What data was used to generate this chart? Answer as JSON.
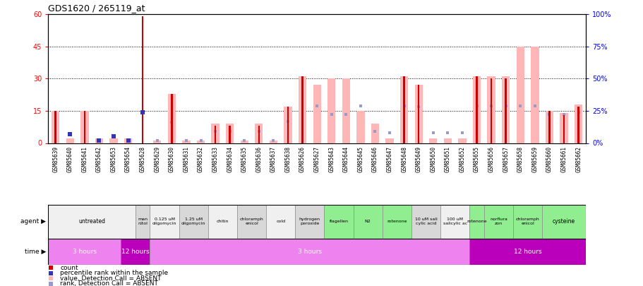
{
  "title": "GDS1620 / 265119_at",
  "samples": [
    "GSM85639",
    "GSM85640",
    "GSM85641",
    "GSM85642",
    "GSM85653",
    "GSM85654",
    "GSM85628",
    "GSM85629",
    "GSM85630",
    "GSM85631",
    "GSM85632",
    "GSM85633",
    "GSM85634",
    "GSM85635",
    "GSM85636",
    "GSM85637",
    "GSM85638",
    "GSM85626",
    "GSM85627",
    "GSM85643",
    "GSM85644",
    "GSM85645",
    "GSM85646",
    "GSM85647",
    "GSM85648",
    "GSM85649",
    "GSM85650",
    "GSM85651",
    "GSM85652",
    "GSM85655",
    "GSM85656",
    "GSM85657",
    "GSM85658",
    "GSM85659",
    "GSM85660",
    "GSM85661",
    "GSM85662"
  ],
  "red_bar": [
    15,
    0,
    15,
    0,
    0,
    0,
    59,
    0,
    23,
    0,
    0,
    8,
    8,
    0,
    8,
    0,
    17,
    31,
    0,
    0,
    0,
    0,
    0,
    0,
    31,
    27,
    0,
    0,
    0,
    31,
    30,
    30,
    0,
    0,
    15,
    13,
    17
  ],
  "blue_square_left": [
    0,
    7,
    0,
    2,
    5,
    2,
    24,
    0,
    0,
    0,
    0,
    0,
    0,
    0,
    0,
    0,
    0,
    0,
    0,
    0,
    0,
    0,
    0,
    0,
    0,
    0,
    0,
    0,
    0,
    0,
    0,
    0,
    0,
    0,
    0,
    0,
    0
  ],
  "pink_bar": [
    15,
    2,
    15,
    2,
    2,
    2,
    0,
    1,
    23,
    1,
    1,
    9,
    9,
    1,
    9,
    1,
    17,
    31,
    27,
    30,
    30,
    15,
    9,
    2,
    31,
    27,
    2,
    2,
    2,
    31,
    31,
    31,
    45,
    45,
    15,
    14,
    18
  ],
  "lightblue_square_right": [
    0,
    7,
    0,
    2,
    5,
    2,
    0,
    2,
    16,
    2,
    2,
    9,
    9,
    2,
    9,
    2,
    17,
    0,
    29,
    22,
    22,
    29,
    9,
    8,
    29,
    28,
    8,
    8,
    8,
    29,
    29,
    29,
    29,
    29,
    22,
    22,
    24
  ],
  "ylim_left": [
    0,
    60
  ],
  "ylim_right": [
    0,
    100
  ],
  "yticks_left": [
    0,
    15,
    30,
    45,
    60
  ],
  "yticks_right": [
    0,
    25,
    50,
    75,
    100
  ],
  "agent_groups": [
    {
      "label": "untreated",
      "start": 0,
      "end": 6,
      "color": "#f0f0f0"
    },
    {
      "label": "man\nnitol",
      "start": 6,
      "end": 7,
      "color": "#d8d8d8"
    },
    {
      "label": "0.125 uM\noligomycin",
      "start": 7,
      "end": 9,
      "color": "#f0f0f0"
    },
    {
      "label": "1.25 uM\noligomycin",
      "start": 9,
      "end": 11,
      "color": "#d8d8d8"
    },
    {
      "label": "chitin",
      "start": 11,
      "end": 13,
      "color": "#f0f0f0"
    },
    {
      "label": "chloramph\nenicol",
      "start": 13,
      "end": 15,
      "color": "#d8d8d8"
    },
    {
      "label": "cold",
      "start": 15,
      "end": 17,
      "color": "#f0f0f0"
    },
    {
      "label": "hydrogen\nperoxide",
      "start": 17,
      "end": 19,
      "color": "#d8d8d8"
    },
    {
      "label": "flagellen",
      "start": 19,
      "end": 21,
      "color": "#90ee90"
    },
    {
      "label": "N2",
      "start": 21,
      "end": 23,
      "color": "#90ee90"
    },
    {
      "label": "rotenone",
      "start": 23,
      "end": 25,
      "color": "#90ee90"
    },
    {
      "label": "10 uM sali\ncylic acid",
      "start": 25,
      "end": 27,
      "color": "#d8d8d8"
    },
    {
      "label": "100 uM\nsalicylic ac",
      "start": 27,
      "end": 29,
      "color": "#f0f0f0"
    },
    {
      "label": "rotenone",
      "start": 29,
      "end": 30,
      "color": "#90ee90"
    },
    {
      "label": "norflura\nzon",
      "start": 30,
      "end": 32,
      "color": "#90ee90"
    },
    {
      "label": "chloramph\nenicol",
      "start": 32,
      "end": 34,
      "color": "#90ee90"
    },
    {
      "label": "cysteine",
      "start": 34,
      "end": 37,
      "color": "#90ee90"
    }
  ],
  "time_groups": [
    {
      "label": "3 hours",
      "start": 0,
      "end": 5,
      "color": "#ee82ee"
    },
    {
      "label": "12 hours",
      "start": 5,
      "end": 7,
      "color": "#bb00bb"
    },
    {
      "label": "3 hours",
      "start": 7,
      "end": 29,
      "color": "#ee82ee"
    },
    {
      "label": "12 hours",
      "start": 29,
      "end": 37,
      "color": "#bb00bb"
    }
  ],
  "red_color": "#cc0000",
  "blue_color": "#3333bb",
  "pink_color": "#ffb6b6",
  "lightblue_color": "#9999cc",
  "grid_color": "#000000",
  "legend_items": [
    {
      "color": "#cc0000",
      "label": "count"
    },
    {
      "color": "#3333bb",
      "label": "percentile rank within the sample"
    },
    {
      "color": "#ffb6b6",
      "label": "value, Detection Call = ABSENT"
    },
    {
      "color": "#9999cc",
      "label": "rank, Detection Call = ABSENT"
    }
  ]
}
